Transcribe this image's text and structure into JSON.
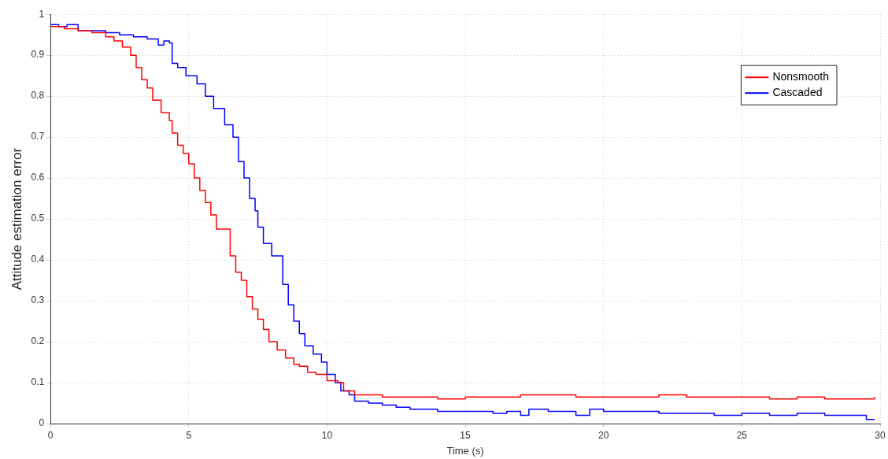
{
  "chart_data": {
    "type": "step",
    "xlabel": "Time (s)",
    "ylabel": "Attitude estimation error",
    "xlim": [
      0,
      30
    ],
    "ylim": [
      0,
      1
    ],
    "xticks": [
      0,
      5,
      10,
      15,
      20,
      25,
      30
    ],
    "yticks": [
      0,
      0.1,
      0.2,
      0.3,
      0.4,
      0.5,
      0.6,
      0.7,
      0.8,
      0.9,
      1
    ],
    "grid": true,
    "line_style": "solid",
    "legend": "top right",
    "series": [
      {
        "name": "Nonsmooth",
        "color": "#ff0000",
        "x": [
          0,
          0.5,
          1,
          1.5,
          2,
          2.3,
          2.6,
          2.9,
          3.1,
          3.3,
          3.5,
          3.7,
          4,
          4.3,
          4.4,
          4.6,
          4.8,
          5,
          5.2,
          5.4,
          5.6,
          5.8,
          6,
          6.4,
          6.5,
          6.7,
          6.9,
          7.1,
          7.3,
          7.5,
          7.7,
          7.9,
          8.2,
          8.5,
          8.8,
          9,
          9.3,
          9.6,
          10,
          10.4,
          10.6,
          11,
          12,
          13,
          14,
          15,
          16,
          17,
          18,
          19,
          20,
          21,
          22,
          23,
          24,
          25,
          26,
          27,
          28,
          29,
          29.8
        ],
        "values": [
          0.97,
          0.965,
          0.96,
          0.955,
          0.945,
          0.935,
          0.92,
          0.9,
          0.87,
          0.84,
          0.82,
          0.79,
          0.76,
          0.74,
          0.71,
          0.68,
          0.66,
          0.635,
          0.6,
          0.57,
          0.54,
          0.51,
          0.475,
          0.475,
          0.41,
          0.37,
          0.35,
          0.31,
          0.28,
          0.255,
          0.23,
          0.2,
          0.18,
          0.16,
          0.145,
          0.14,
          0.125,
          0.12,
          0.105,
          0.1,
          0.08,
          0.07,
          0.065,
          0.065,
          0.06,
          0.065,
          0.065,
          0.07,
          0.07,
          0.065,
          0.065,
          0.065,
          0.07,
          0.065,
          0.065,
          0.065,
          0.06,
          0.065,
          0.06,
          0.06,
          0.065
        ]
      },
      {
        "name": "Cascaded",
        "color": "#0000ff",
        "x": [
          0,
          0.3,
          0.6,
          1,
          1.5,
          2,
          2.5,
          3,
          3.5,
          3.9,
          4.1,
          4.3,
          4.4,
          4.6,
          4.9,
          5.3,
          5.6,
          5.9,
          6.3,
          6.6,
          6.8,
          7,
          7.2,
          7.4,
          7.5,
          7.7,
          8,
          8.3,
          8.4,
          8.6,
          8.8,
          9,
          9.2,
          9.5,
          9.8,
          10,
          10.3,
          10.5,
          10.8,
          11,
          11.5,
          12,
          12.5,
          13,
          14,
          15,
          16,
          16.5,
          17,
          17.3,
          18,
          19,
          19.5,
          20,
          21,
          22,
          23,
          24,
          25,
          26,
          27,
          28,
          29,
          29.5,
          29.8
        ],
        "values": [
          0.975,
          0.97,
          0.975,
          0.96,
          0.96,
          0.955,
          0.95,
          0.945,
          0.94,
          0.925,
          0.935,
          0.93,
          0.88,
          0.87,
          0.85,
          0.83,
          0.8,
          0.77,
          0.73,
          0.7,
          0.64,
          0.6,
          0.55,
          0.52,
          0.48,
          0.44,
          0.41,
          0.41,
          0.34,
          0.29,
          0.25,
          0.22,
          0.19,
          0.17,
          0.15,
          0.12,
          0.1,
          0.08,
          0.07,
          0.055,
          0.05,
          0.045,
          0.04,
          0.035,
          0.03,
          0.03,
          0.025,
          0.03,
          0.02,
          0.035,
          0.03,
          0.02,
          0.035,
          0.03,
          0.03,
          0.025,
          0.025,
          0.02,
          0.025,
          0.02,
          0.025,
          0.02,
          0.02,
          0.01,
          0.01
        ]
      }
    ]
  }
}
